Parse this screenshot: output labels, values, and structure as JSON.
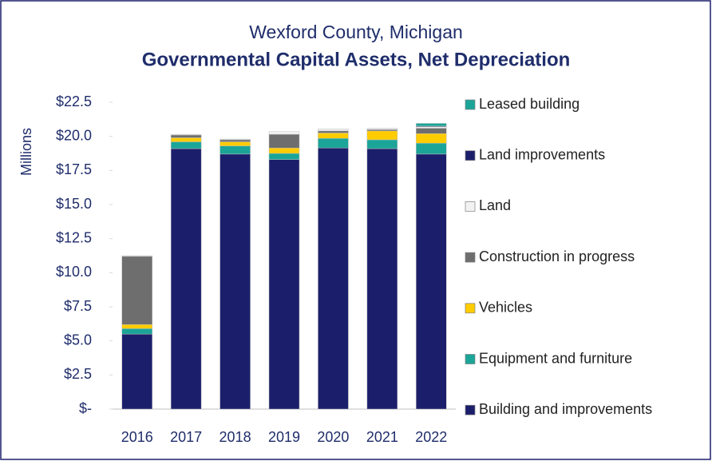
{
  "chart_data": {
    "type": "bar",
    "stacked": true,
    "subtitle": "Wexford County, Michigan",
    "title": "Governmental Capital Assets, Net Depreciation",
    "ylabel": "Millions",
    "categories": [
      "2016",
      "2017",
      "2018",
      "2019",
      "2020",
      "2021",
      "2022"
    ],
    "series": [
      {
        "name": "Building and improvements",
        "color": "#1b1f6b",
        "values": [
          5.5,
          19.1,
          18.7,
          18.3,
          19.15,
          19.1,
          18.7
        ]
      },
      {
        "name": "Equipment and furniture",
        "color": "#1ba598",
        "values": [
          0.4,
          0.5,
          0.6,
          0.45,
          0.7,
          0.65,
          0.8
        ]
      },
      {
        "name": "Vehicles",
        "color": "#ffcc00",
        "values": [
          0.3,
          0.3,
          0.3,
          0.4,
          0.4,
          0.65,
          0.7
        ]
      },
      {
        "name": "Construction in progress",
        "color": "#6e6e6e",
        "values": [
          5.0,
          0.2,
          0.15,
          1.0,
          0.15,
          0.1,
          0.4
        ]
      },
      {
        "name": "Land",
        "color": "#f2f2f2",
        "values": [
          0.05,
          0.05,
          0.05,
          0.2,
          0.15,
          0.1,
          0.1
        ]
      },
      {
        "name": "Land improvements",
        "color": "#1b1f6b",
        "values": [
          0,
          0,
          0,
          0,
          0,
          0,
          0.05
        ]
      },
      {
        "name": "Leased building",
        "color": "#1ba598",
        "values": [
          0,
          0,
          0,
          0,
          0,
          0,
          0.2
        ]
      }
    ],
    "ylim": [
      0,
      22.5
    ],
    "yticks": [
      {
        "value": 0,
        "label": "$-"
      },
      {
        "value": 2.5,
        "label": "$2.5"
      },
      {
        "value": 5,
        "label": "$5.0"
      },
      {
        "value": 7.5,
        "label": "$7.5"
      },
      {
        "value": 10,
        "label": "$10.0"
      },
      {
        "value": 12.5,
        "label": "$12.5"
      },
      {
        "value": 15,
        "label": "$15.0"
      },
      {
        "value": 17.5,
        "label": "$17.5"
      },
      {
        "value": 20,
        "label": "$20.0"
      },
      {
        "value": 22.5,
        "label": "$22.5"
      }
    ],
    "grid": false,
    "legend": "right"
  }
}
